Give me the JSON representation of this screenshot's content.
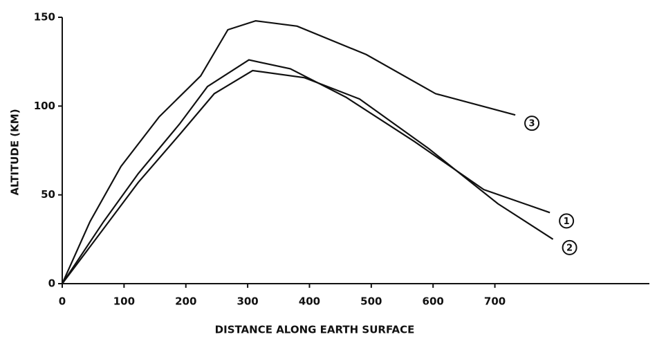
{
  "chart_data": {
    "type": "line",
    "xlabel": "DISTANCE ALONG EARTH SURFACE",
    "ylabel": "ALTITUDE (KM)",
    "xlim": [
      0,
      950
    ],
    "ylim": [
      0,
      150
    ],
    "xticks": [
      0,
      100,
      200,
      300,
      400,
      500,
      600,
      700
    ],
    "yticks": [
      0,
      50,
      100,
      150
    ],
    "grid": false,
    "series": [
      {
        "name": "3",
        "color": "#111111",
        "x": [
          0,
          45,
          95,
          157,
          224,
          268,
          313,
          380,
          492,
          604,
          733
        ],
        "values": [
          0,
          35,
          66,
          94,
          117,
          143,
          148,
          145,
          129,
          107,
          95
        ]
      },
      {
        "name": "1",
        "color": "#111111",
        "x": [
          0,
          67,
          123,
          190,
          235,
          302,
          369,
          459,
          570,
          682,
          789
        ],
        "values": [
          0,
          35,
          62,
          90,
          111,
          126,
          121,
          105,
          80,
          53,
          40
        ]
      },
      {
        "name": "2",
        "color": "#111111",
        "x": [
          0,
          67,
          123,
          190,
          246,
          308,
          392,
          481,
          593,
          705,
          794
        ],
        "values": [
          0,
          31,
          57,
          84,
          107,
          120,
          116,
          104,
          76,
          45,
          25
        ]
      }
    ]
  }
}
